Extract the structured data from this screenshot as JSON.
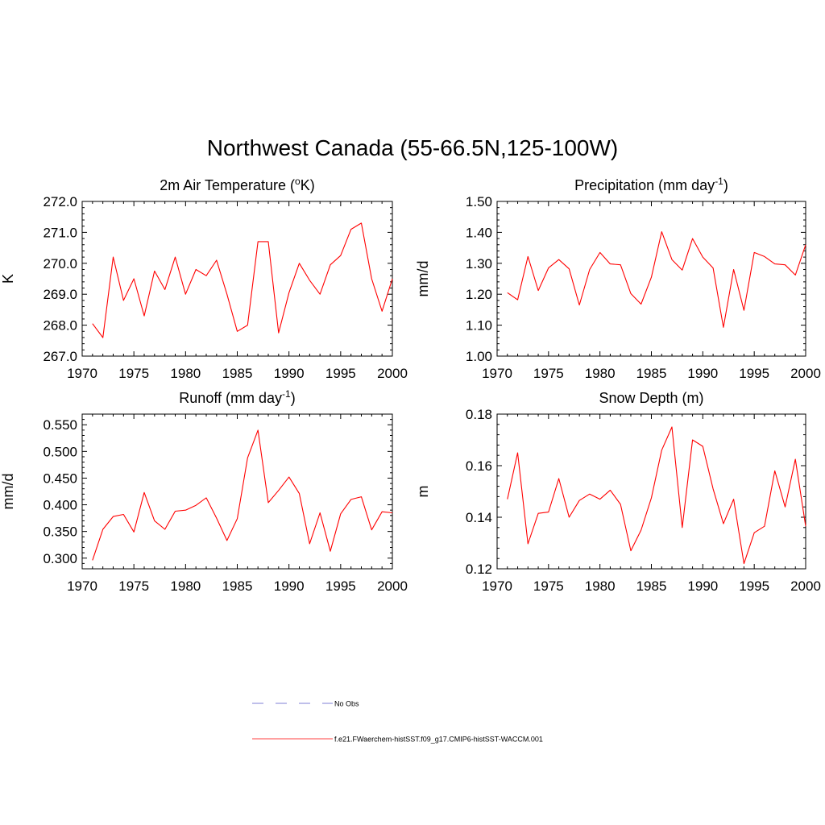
{
  "figure_title": "Northwest Canada (55-66.5N,125-100W)",
  "legend": {
    "entries": [
      {
        "label": "No Obs",
        "color": "#9999dd",
        "dash": true
      },
      {
        "label": "f.e21.FWaerchem-histSST.f09_g17.CMIP6-histSST-WACCM.001",
        "color": "#ff0000",
        "dash": false
      }
    ]
  },
  "chart_data": [
    {
      "type": "line",
      "title": "2m Air Temperature (oK)",
      "title_parts": {
        "pre": "2m Air Temperature (",
        "sup": "o",
        "post": "K)"
      },
      "xlabel": "",
      "ylabel": "K",
      "xlim": [
        1970,
        2000
      ],
      "ylim": [
        267.0,
        272.0
      ],
      "xticks": [
        1970,
        1975,
        1980,
        1985,
        1990,
        1995,
        2000
      ],
      "yticks": [
        "267.0",
        "268.0",
        "269.0",
        "270.0",
        "271.0",
        "272.0"
      ],
      "series": [
        {
          "color": "#ff0000",
          "x": [
            1971,
            1972,
            1973,
            1974,
            1975,
            1976,
            1977,
            1978,
            1979,
            1980,
            1981,
            1982,
            1983,
            1984,
            1985,
            1986,
            1987,
            1988,
            1989,
            1990,
            1991,
            1992,
            1993,
            1994,
            1995,
            1996,
            1997,
            1998,
            1999,
            2000
          ],
          "values": [
            268.05,
            267.6,
            270.2,
            268.8,
            269.5,
            268.3,
            269.75,
            269.15,
            270.2,
            269.0,
            269.8,
            269.6,
            270.1,
            269.0,
            267.8,
            268.0,
            270.7,
            270.7,
            267.75,
            269.05,
            270.0,
            269.45,
            269.0,
            269.95,
            270.25,
            271.1,
            271.3,
            269.5,
            268.45,
            269.5
          ]
        }
      ]
    },
    {
      "type": "line",
      "title": "Precipitation (mm day-1)",
      "title_parts": {
        "pre": "Precipitation (mm day",
        "sup": "-1",
        "post": ")"
      },
      "xlabel": "",
      "ylabel": "mm/d",
      "xlim": [
        1970,
        2000
      ],
      "ylim": [
        1.0,
        1.5
      ],
      "xticks": [
        1970,
        1975,
        1980,
        1985,
        1990,
        1995,
        2000
      ],
      "yticks": [
        "1.00",
        "1.10",
        "1.20",
        "1.30",
        "1.40",
        "1.50"
      ],
      "series": [
        {
          "color": "#ff0000",
          "x": [
            1971,
            1972,
            1973,
            1974,
            1975,
            1976,
            1977,
            1978,
            1979,
            1980,
            1981,
            1982,
            1983,
            1984,
            1985,
            1986,
            1987,
            1988,
            1989,
            1990,
            1991,
            1992,
            1993,
            1994,
            1995,
            1996,
            1997,
            1998,
            1999,
            2000
          ],
          "values": [
            1.205,
            1.182,
            1.322,
            1.212,
            1.285,
            1.312,
            1.282,
            1.165,
            1.28,
            1.335,
            1.298,
            1.295,
            1.202,
            1.168,
            1.255,
            1.402,
            1.312,
            1.278,
            1.38,
            1.32,
            1.285,
            1.093,
            1.28,
            1.148,
            1.335,
            1.322,
            1.298,
            1.295,
            1.262,
            1.36
          ]
        }
      ]
    },
    {
      "type": "line",
      "title": "Runoff (mm day-1)",
      "title_parts": {
        "pre": "Runoff (mm day",
        "sup": "-1",
        "post": ")"
      },
      "xlabel": "",
      "ylabel": "mm/d",
      "xlim": [
        1970,
        2000
      ],
      "ylim": [
        0.28,
        0.57
      ],
      "xticks": [
        1970,
        1975,
        1980,
        1985,
        1990,
        1995,
        2000
      ],
      "yticks": [
        "0.300",
        "0.350",
        "0.400",
        "0.450",
        "0.500",
        "0.550"
      ],
      "series": [
        {
          "color": "#ff0000",
          "x": [
            1971,
            1972,
            1973,
            1974,
            1975,
            1976,
            1977,
            1978,
            1979,
            1980,
            1981,
            1982,
            1983,
            1984,
            1985,
            1986,
            1987,
            1988,
            1989,
            1990,
            1991,
            1992,
            1993,
            1994,
            1995,
            1996,
            1997,
            1998,
            1999,
            2000
          ],
          "values": [
            0.296,
            0.354,
            0.378,
            0.382,
            0.349,
            0.423,
            0.37,
            0.354,
            0.388,
            0.39,
            0.399,
            0.413,
            0.375,
            0.333,
            0.374,
            0.488,
            0.54,
            0.404,
            0.427,
            0.452,
            0.421,
            0.327,
            0.385,
            0.313,
            0.383,
            0.41,
            0.415,
            0.353,
            0.387,
            0.385
          ]
        }
      ]
    },
    {
      "type": "line",
      "title": "Snow Depth (m)",
      "title_parts": {
        "pre": "Snow Depth (m)",
        "sup": "",
        "post": ""
      },
      "xlabel": "",
      "ylabel": "m",
      "xlim": [
        1970,
        2000
      ],
      "ylim": [
        0.12,
        0.18
      ],
      "xticks": [
        1970,
        1975,
        1980,
        1985,
        1990,
        1995,
        2000
      ],
      "yticks": [
        "0.12",
        "0.14",
        "0.16",
        "0.18"
      ],
      "series": [
        {
          "color": "#ff0000",
          "x": [
            1971,
            1972,
            1973,
            1974,
            1975,
            1976,
            1977,
            1978,
            1979,
            1980,
            1981,
            1982,
            1983,
            1984,
            1985,
            1986,
            1987,
            1988,
            1989,
            1990,
            1991,
            1992,
            1993,
            1994,
            1995,
            1996,
            1997,
            1998,
            1999,
            2000
          ],
          "values": [
            0.147,
            0.165,
            0.1297,
            0.1415,
            0.142,
            0.155,
            0.14,
            0.1465,
            0.149,
            0.147,
            0.1505,
            0.145,
            0.127,
            0.135,
            0.1475,
            0.166,
            0.175,
            0.136,
            0.17,
            0.1675,
            0.151,
            0.1375,
            0.147,
            0.122,
            0.134,
            0.1365,
            0.158,
            0.144,
            0.1625,
            0.1365
          ]
        }
      ]
    }
  ]
}
